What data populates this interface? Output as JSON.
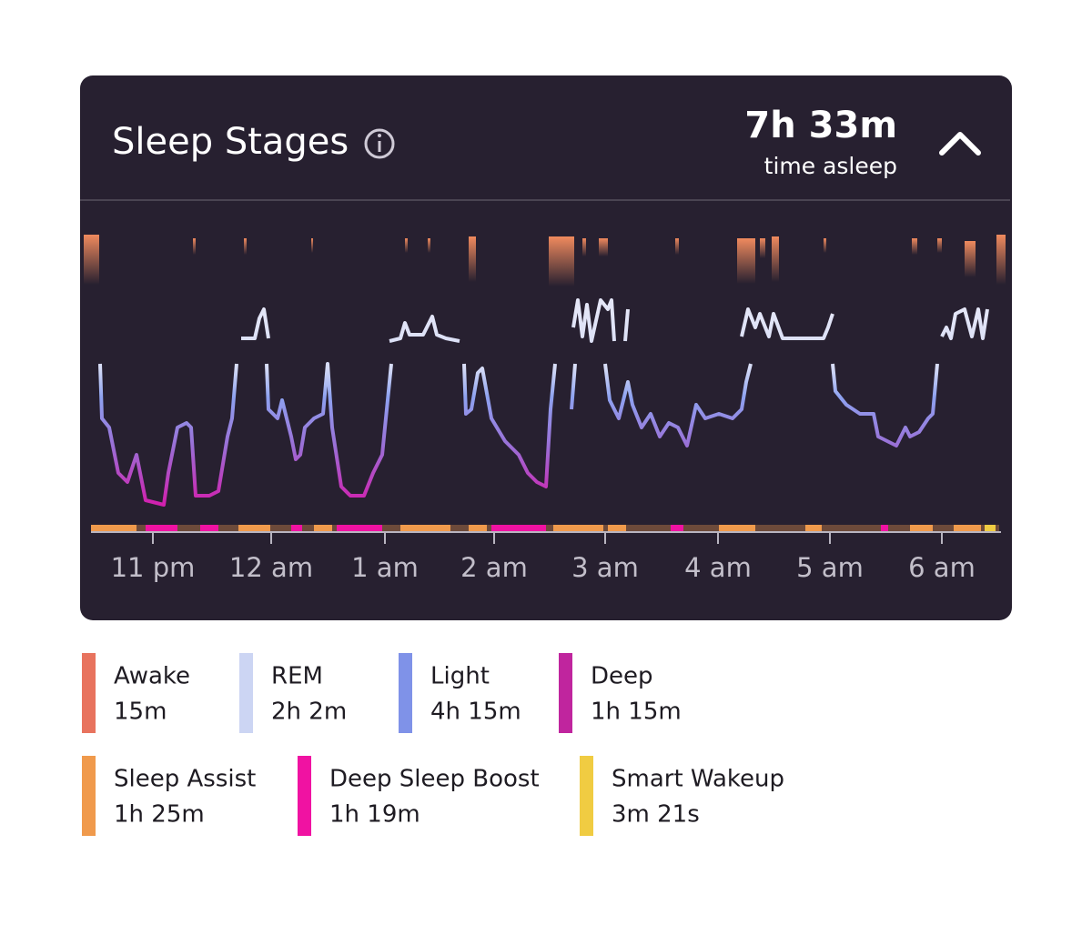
{
  "header": {
    "title": "Sleep Stages",
    "total": "7h 33m",
    "total_label": "time asleep"
  },
  "x_axis": {
    "labels": [
      "11 pm",
      "12 am",
      "1 am",
      "2 am",
      "3 am",
      "4 am",
      "5 am",
      "6 am"
    ]
  },
  "legend": [
    {
      "name": "Awake",
      "value": "15m",
      "color": "#e8735e"
    },
    {
      "name": "REM",
      "value": "2h 2m",
      "color": "#ccd5f3"
    },
    {
      "name": "Light",
      "value": "4h 15m",
      "color": "#7f92e8"
    },
    {
      "name": "Deep",
      "value": "1h 15m",
      "color": "#c0259e"
    },
    {
      "name": "Sleep Assist",
      "value": "1h 25m",
      "color": "#f09a4c"
    },
    {
      "name": "Deep Sleep Boost",
      "value": "1h 19m",
      "color": "#f012a2"
    },
    {
      "name": "Smart Wakeup",
      "value": "3m 21s",
      "color": "#f0cc42"
    }
  ]
}
